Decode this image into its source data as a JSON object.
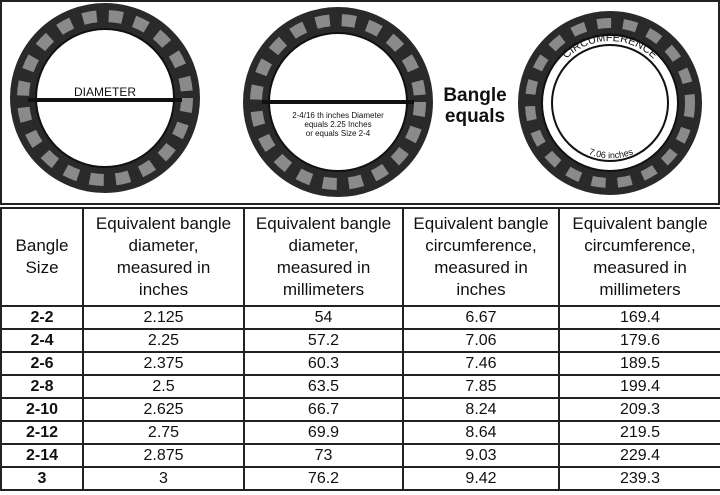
{
  "diagram": {
    "diameter_label": "DIAMETER",
    "example_lines": [
      "2-4/16 th inches Diameter",
      "equals 2.25 Inches",
      "or equals Size 2-4"
    ],
    "middle_text": [
      "Bangle",
      "equals"
    ],
    "circumference_label": "CIRCUMFERENCE",
    "circumference_value": "7.06 inches"
  },
  "table": {
    "headers": [
      "Bangle Size",
      "Equivalent bangle diameter, measured in inches",
      "Equivalent bangle diameter, measured in millimeters",
      "Equivalent bangle circumference, measured in inches",
      "Equivalent bangle circumference, measured in millimeters"
    ],
    "rows": [
      [
        "2-2",
        "2.125",
        "54",
        "6.67",
        "169.4"
      ],
      [
        "2-4",
        "2.25",
        "57.2",
        "7.06",
        "179.6"
      ],
      [
        "2-6",
        "2.375",
        "60.3",
        "7.46",
        "189.5"
      ],
      [
        "2-8",
        "2.5",
        "63.5",
        "7.85",
        "199.4"
      ],
      [
        "2-10",
        "2.625",
        "66.7",
        "8.24",
        "209.3"
      ],
      [
        "2-12",
        "2.75",
        "69.9",
        "8.64",
        "219.5"
      ],
      [
        "2-14",
        "2.875",
        "73",
        "9.03",
        "229.4"
      ],
      [
        "3",
        "3",
        "76.2",
        "9.42",
        "239.3"
      ]
    ]
  }
}
